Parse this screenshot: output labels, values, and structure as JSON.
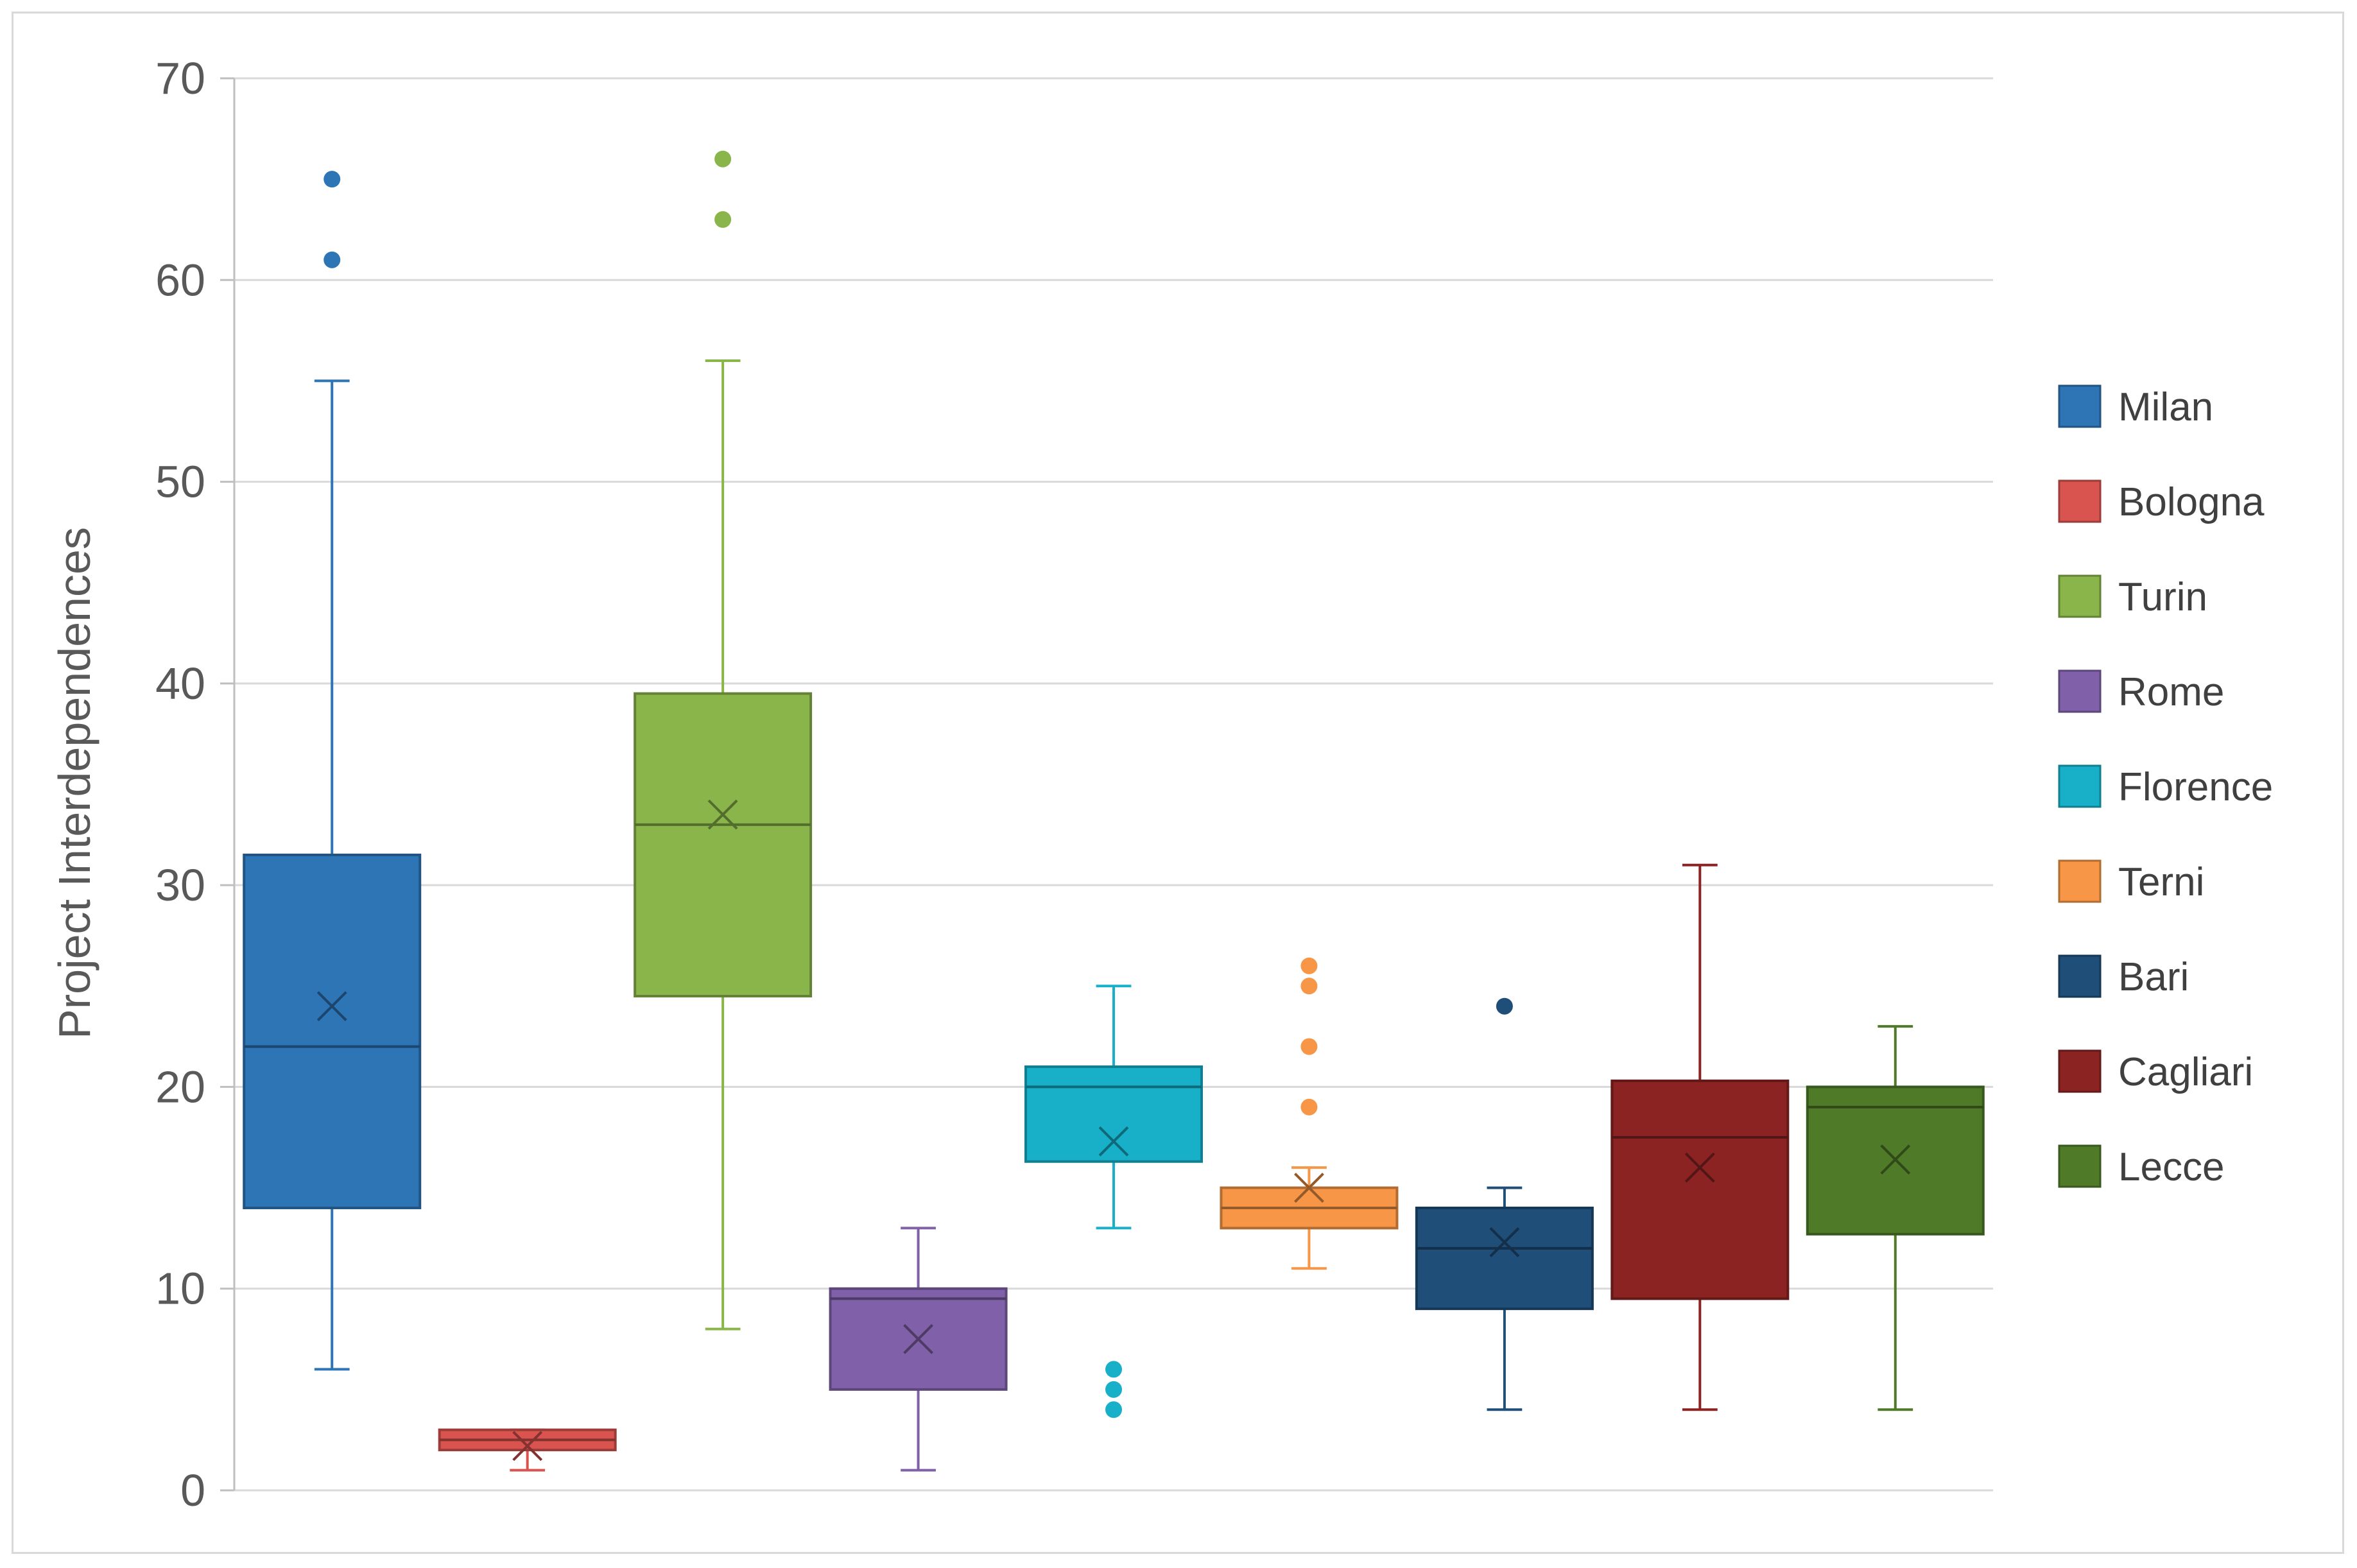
{
  "chart_data": {
    "type": "boxplot",
    "title": "",
    "xlabel": "",
    "ylabel": "Project Interdependences",
    "ylim": [
      0,
      70
    ],
    "yticks": [
      0,
      10,
      20,
      30,
      40,
      50,
      60,
      70
    ],
    "grid": true,
    "legend_position": "right",
    "series": [
      {
        "name": "Milan",
        "color": "#2e75b6",
        "min": 6,
        "q1": 14,
        "median": 22,
        "q3": 31.5,
        "max": 55,
        "mean": 24,
        "outliers": [
          61,
          65
        ]
      },
      {
        "name": "Bologna",
        "color": "#d9534f",
        "min": 1,
        "q1": 2,
        "median": 2.5,
        "q3": 3,
        "max": 3,
        "mean": 2.2,
        "outliers": []
      },
      {
        "name": "Turin",
        "color": "#8ab54b",
        "min": 8,
        "q1": 24.5,
        "median": 33,
        "q3": 39.5,
        "max": 56,
        "mean": 33.5,
        "outliers": [
          63,
          66
        ]
      },
      {
        "name": "Rome",
        "color": "#8061a9",
        "min": 1,
        "q1": 5,
        "median": 9.5,
        "q3": 10,
        "max": 13,
        "mean": 7.5,
        "outliers": []
      },
      {
        "name": "Florence",
        "color": "#17b0c8",
        "min": 13,
        "q1": 16.3,
        "median": 20,
        "q3": 21,
        "max": 25,
        "mean": 17.3,
        "outliers": [
          4,
          5,
          6
        ]
      },
      {
        "name": "Terni",
        "color": "#f79646",
        "min": 11,
        "q1": 13,
        "median": 14,
        "q3": 15,
        "max": 16,
        "mean": 15,
        "outliers": [
          19,
          22,
          25,
          26
        ]
      },
      {
        "name": "Bari",
        "color": "#1f4e79",
        "min": 4,
        "q1": 9,
        "median": 12,
        "q3": 14,
        "max": 15,
        "mean": 12.3,
        "outliers": [
          24
        ]
      },
      {
        "name": "Cagliari",
        "color": "#8b2323",
        "min": 4,
        "q1": 9.5,
        "median": 17.5,
        "q3": 20.3,
        "max": 31,
        "mean": 16,
        "outliers": []
      },
      {
        "name": "Lecce",
        "color": "#4f7a28",
        "min": 4,
        "q1": 12.7,
        "median": 19,
        "q3": 20,
        "max": 23,
        "mean": 16.4,
        "outliers": []
      }
    ]
  }
}
